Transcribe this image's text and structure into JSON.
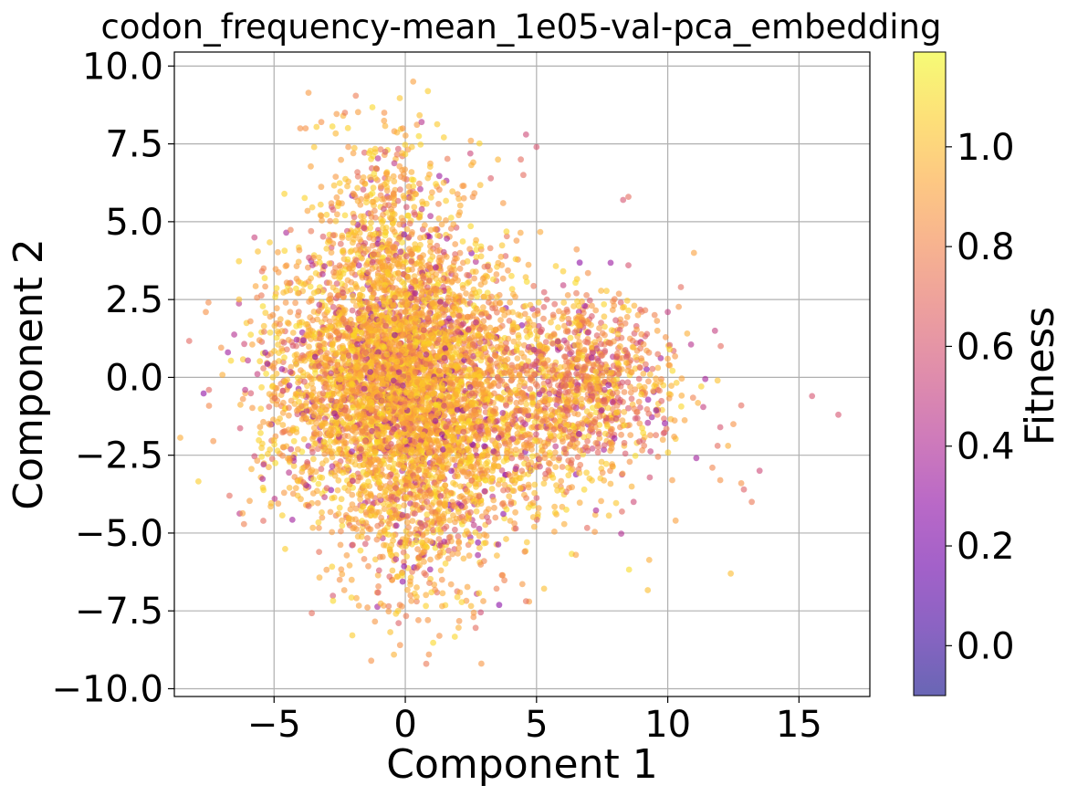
{
  "chart_data": {
    "type": "scatter",
    "title": "codon_frequency-mean_1e05-val-pca_embedding",
    "xlabel": "Component 1",
    "ylabel": "Component 2",
    "xlim": [
      -8.8,
      17.7
    ],
    "ylim": [
      -10.25,
      10.45
    ],
    "x_ticks": [
      -5,
      0,
      5,
      10,
      15
    ],
    "x_tick_labels": [
      "−5",
      "0",
      "5",
      "10",
      "15"
    ],
    "y_ticks": [
      -10,
      -7.5,
      -5,
      -2.5,
      0,
      2.5,
      5,
      7.5,
      10
    ],
    "y_tick_labels": [
      "−10.0",
      "−7.5",
      "−5.0",
      "−2.5",
      "0.0",
      "2.5",
      "5.0",
      "7.5",
      "10.0"
    ],
    "grid": true,
    "colormap": "plasma",
    "point_alpha": 0.6,
    "colorbar": {
      "label": "Fitness",
      "range": [
        -0.1,
        1.19
      ],
      "ticks": [
        0.0,
        0.2,
        0.4,
        0.6,
        0.8,
        1.0
      ],
      "tick_labels": [
        "0.0",
        "0.2",
        "0.4",
        "0.6",
        "0.8",
        "1.0"
      ]
    },
    "clusters_note": "dense main cloud centred near (0, 0) and secondary cloud near (7, 0); thousands of points",
    "points": [
      [
        16.5,
        -1.2,
        0.6
      ],
      [
        15.5,
        -0.6,
        0.6
      ],
      [
        13.5,
        -3.0,
        0.55
      ],
      [
        13.2,
        -4.0,
        0.75
      ],
      [
        12.9,
        -3.6,
        0.65
      ],
      [
        12.8,
        -0.9,
        0.7
      ],
      [
        12.8,
        -3.4,
        0.85
      ],
      [
        12.5,
        -1.5,
        0.85
      ],
      [
        12.4,
        -6.3,
        1.0
      ],
      [
        12.3,
        -2.2,
        0.95
      ],
      [
        12.0,
        -3.3,
        0.85
      ],
      [
        11.7,
        -2.9,
        0.8
      ],
      [
        11.0,
        4.0,
        0.9
      ],
      [
        10.5,
        2.9,
        0.7
      ],
      [
        10.3,
        -4.6,
        0.9
      ],
      [
        10.0,
        2.1,
        0.5
      ],
      [
        11.8,
        1.5,
        0.5
      ],
      [
        12.0,
        -1.6,
        0.6
      ],
      [
        11.9,
        -2.2,
        0.7
      ],
      [
        8.3,
        5.7,
        0.6
      ],
      [
        8.5,
        5.8,
        0.7
      ],
      [
        8.5,
        3.6,
        0.6
      ],
      [
        8.7,
        -4.0,
        0.55
      ],
      [
        5.0,
        7.4,
        0.6
      ],
      [
        4.6,
        7.8,
        0.55
      ],
      [
        4.5,
        6.5,
        0.7
      ],
      [
        4.4,
        7.0,
        0.7
      ],
      [
        2.5,
        7.6,
        0.9
      ],
      [
        0.3,
        9.5,
        0.9
      ],
      [
        -0.1,
        8.0,
        0.85
      ],
      [
        -0.8,
        8.5,
        0.85
      ],
      [
        -2.3,
        8.5,
        0.75
      ],
      [
        -3.2,
        8.2,
        0.85
      ],
      [
        -4.0,
        8.0,
        0.85
      ],
      [
        -3.8,
        8.0,
        0.85
      ],
      [
        -7.6,
        2.1,
        0.85
      ],
      [
        -6.7,
        -3.8,
        0.7
      ],
      [
        -6.1,
        -0.4,
        0.45
      ],
      [
        -5.9,
        1.8,
        0.85
      ],
      [
        -5.4,
        3.5,
        0.8
      ],
      [
        -5.4,
        -2.8,
        0.4
      ],
      [
        -2.5,
        -6.5,
        0.85
      ],
      [
        -1.3,
        -9.1,
        0.85
      ],
      [
        -0.2,
        -8.6,
        0.85
      ],
      [
        0.5,
        -7.8,
        0.85
      ],
      [
        0.9,
        -8.9,
        0.85
      ],
      [
        0.8,
        -9.2,
        0.75
      ],
      [
        1.3,
        -8.3,
        0.85
      ],
      [
        2.6,
        -7.7,
        0.85
      ],
      [
        6.5,
        -5.7,
        0.9
      ],
      [
        0.2,
        -7.0,
        0.85
      ],
      [
        -1.0,
        -6.2,
        0.6
      ],
      [
        -0.6,
        -6.4,
        0.65
      ],
      [
        1.4,
        -6.5,
        0.85
      ],
      [
        3.0,
        -5.9,
        0.8
      ]
    ]
  }
}
